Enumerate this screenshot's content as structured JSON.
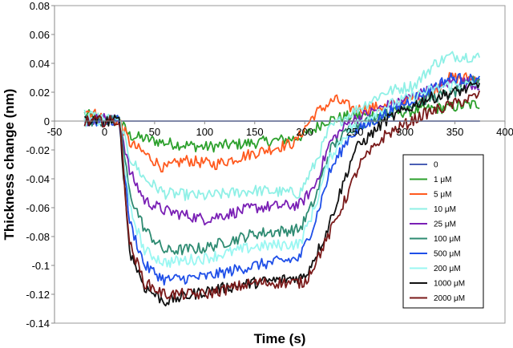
{
  "chart_data": {
    "type": "line",
    "title": "",
    "xlabel": "Time (s)",
    "ylabel": "Thickness change (nm)",
    "xlim": [
      -50,
      400
    ],
    "ylim": [
      -0.14,
      0.08
    ],
    "x_ticks": [
      -50,
      0,
      50,
      100,
      150,
      200,
      250,
      300,
      350,
      400
    ],
    "y_ticks": [
      -0.14,
      -0.12,
      -0.1,
      -0.08,
      -0.06,
      -0.04,
      -0.02,
      0,
      0.02,
      0.04,
      0.06,
      0.08
    ],
    "x_tick_labels": [
      "-50",
      "0",
      "50",
      "100",
      "150",
      "200",
      "250",
      "300",
      "350",
      "400"
    ],
    "y_tick_labels": [
      "-0.14",
      "-0.12",
      "-0.1",
      "-0.08",
      "-0.06",
      "-0.04",
      "-0.02",
      "0",
      "0.02",
      "0.04",
      "0.06",
      "0.08"
    ],
    "grid": false,
    "legend_position": "right",
    "series": [
      {
        "name": "0",
        "color": "#4a5fb5",
        "noise": 0,
        "points": [
          [
            -20,
            0
          ],
          [
            375,
            0
          ]
        ]
      },
      {
        "name": "1 μM",
        "color": "#2ca02c",
        "noise": 0.004,
        "points": [
          [
            -20,
            0.005
          ],
          [
            0,
            0.0
          ],
          [
            15,
            0.0
          ],
          [
            25,
            -0.01
          ],
          [
            60,
            -0.015
          ],
          [
            100,
            -0.018
          ],
          [
            150,
            -0.015
          ],
          [
            190,
            -0.012
          ],
          [
            205,
            -0.008
          ],
          [
            220,
            0.0
          ],
          [
            240,
            0.003
          ],
          [
            280,
            0.005
          ],
          [
            320,
            0.008
          ],
          [
            350,
            0.01
          ],
          [
            375,
            0.012
          ]
        ]
      },
      {
        "name": "5 μM",
        "color": "#ff5a1f",
        "noise": 0.004,
        "points": [
          [
            -20,
            0.008
          ],
          [
            0,
            0.002
          ],
          [
            15,
            0.0
          ],
          [
            25,
            -0.015
          ],
          [
            45,
            -0.025
          ],
          [
            60,
            -0.033
          ],
          [
            80,
            -0.027
          ],
          [
            110,
            -0.03
          ],
          [
            150,
            -0.022
          ],
          [
            190,
            -0.015
          ],
          [
            210,
            0.005
          ],
          [
            230,
            0.015
          ],
          [
            250,
            0.008
          ],
          [
            280,
            0.01
          ],
          [
            320,
            0.018
          ],
          [
            345,
            0.03
          ],
          [
            375,
            0.03
          ]
        ]
      },
      {
        "name": "10 μM",
        "color": "#8ff0e6",
        "noise": 0.004,
        "points": [
          [
            -20,
            0.005
          ],
          [
            0,
            0.002
          ],
          [
            15,
            0.0
          ],
          [
            25,
            -0.025
          ],
          [
            40,
            -0.04
          ],
          [
            60,
            -0.05
          ],
          [
            100,
            -0.052
          ],
          [
            150,
            -0.048
          ],
          [
            195,
            -0.05
          ],
          [
            210,
            -0.03
          ],
          [
            225,
            -0.005
          ],
          [
            245,
            0.005
          ],
          [
            280,
            0.02
          ],
          [
            310,
            0.025
          ],
          [
            330,
            0.04
          ],
          [
            345,
            0.045
          ],
          [
            360,
            0.045
          ],
          [
            375,
            0.044
          ]
        ]
      },
      {
        "name": "25 μM",
        "color": "#7a20b5",
        "noise": 0.004,
        "points": [
          [
            -20,
            0.0
          ],
          [
            0,
            0.002
          ],
          [
            15,
            0.0
          ],
          [
            25,
            -0.035
          ],
          [
            40,
            -0.055
          ],
          [
            60,
            -0.062
          ],
          [
            100,
            -0.068
          ],
          [
            150,
            -0.06
          ],
          [
            195,
            -0.058
          ],
          [
            210,
            -0.045
          ],
          [
            225,
            -0.015
          ],
          [
            245,
            0.0
          ],
          [
            280,
            0.01
          ],
          [
            320,
            0.02
          ],
          [
            350,
            0.028
          ],
          [
            375,
            0.025
          ]
        ]
      },
      {
        "name": "100 μM",
        "color": "#2e8b72",
        "noise": 0.004,
        "points": [
          [
            -20,
            0.0
          ],
          [
            0,
            0.0
          ],
          [
            15,
            0.0
          ],
          [
            25,
            -0.05
          ],
          [
            40,
            -0.075
          ],
          [
            60,
            -0.09
          ],
          [
            100,
            -0.088
          ],
          [
            150,
            -0.078
          ],
          [
            195,
            -0.075
          ],
          [
            210,
            -0.055
          ],
          [
            225,
            -0.02
          ],
          [
            245,
            -0.005
          ],
          [
            280,
            0.005
          ],
          [
            320,
            0.015
          ],
          [
            350,
            0.02
          ],
          [
            375,
            0.03
          ]
        ]
      },
      {
        "name": "500 μM",
        "color": "#1f4fe8",
        "noise": 0.004,
        "points": [
          [
            -20,
            0.0
          ],
          [
            0,
            0.0
          ],
          [
            15,
            0.0
          ],
          [
            25,
            -0.07
          ],
          [
            40,
            -0.1
          ],
          [
            60,
            -0.11
          ],
          [
            100,
            -0.108
          ],
          [
            150,
            -0.1
          ],
          [
            195,
            -0.095
          ],
          [
            210,
            -0.07
          ],
          [
            225,
            -0.035
          ],
          [
            245,
            -0.01
          ],
          [
            280,
            0.005
          ],
          [
            320,
            0.02
          ],
          [
            345,
            0.03
          ],
          [
            375,
            0.028
          ]
        ]
      },
      {
        "name": "200 μM",
        "color": "#9af7f2",
        "noise": 0.004,
        "points": [
          [
            -20,
            0.0
          ],
          [
            0,
            0.0
          ],
          [
            15,
            0.0
          ],
          [
            25,
            -0.06
          ],
          [
            40,
            -0.09
          ],
          [
            60,
            -0.098
          ],
          [
            100,
            -0.095
          ],
          [
            150,
            -0.087
          ],
          [
            195,
            -0.085
          ],
          [
            210,
            -0.06
          ],
          [
            225,
            -0.025
          ],
          [
            245,
            -0.005
          ],
          [
            280,
            0.01
          ],
          [
            320,
            0.02
          ],
          [
            345,
            0.025
          ],
          [
            375,
            0.025
          ]
        ]
      },
      {
        "name": "1000 μM",
        "color": "#111111",
        "noise": 0.004,
        "points": [
          [
            -20,
            0.0
          ],
          [
            0,
            0.0
          ],
          [
            15,
            0.0
          ],
          [
            25,
            -0.09
          ],
          [
            40,
            -0.115
          ],
          [
            60,
            -0.125
          ],
          [
            100,
            -0.118
          ],
          [
            150,
            -0.112
          ],
          [
            200,
            -0.108
          ],
          [
            220,
            -0.08
          ],
          [
            235,
            -0.05
          ],
          [
            250,
            -0.02
          ],
          [
            280,
            0.0
          ],
          [
            320,
            0.015
          ],
          [
            350,
            0.02
          ],
          [
            375,
            0.025
          ]
        ]
      },
      {
        "name": "2000 μM",
        "color": "#7a1a1a",
        "noise": 0.004,
        "points": [
          [
            -20,
            0.0
          ],
          [
            0,
            0.0
          ],
          [
            15,
            0.0
          ],
          [
            25,
            -0.085
          ],
          [
            40,
            -0.112
          ],
          [
            60,
            -0.12
          ],
          [
            100,
            -0.12
          ],
          [
            150,
            -0.112
          ],
          [
            200,
            -0.112
          ],
          [
            220,
            -0.085
          ],
          [
            240,
            -0.055
          ],
          [
            255,
            -0.03
          ],
          [
            280,
            -0.01
          ],
          [
            320,
            0.005
          ],
          [
            350,
            0.012
          ],
          [
            375,
            0.018
          ]
        ]
      }
    ]
  }
}
